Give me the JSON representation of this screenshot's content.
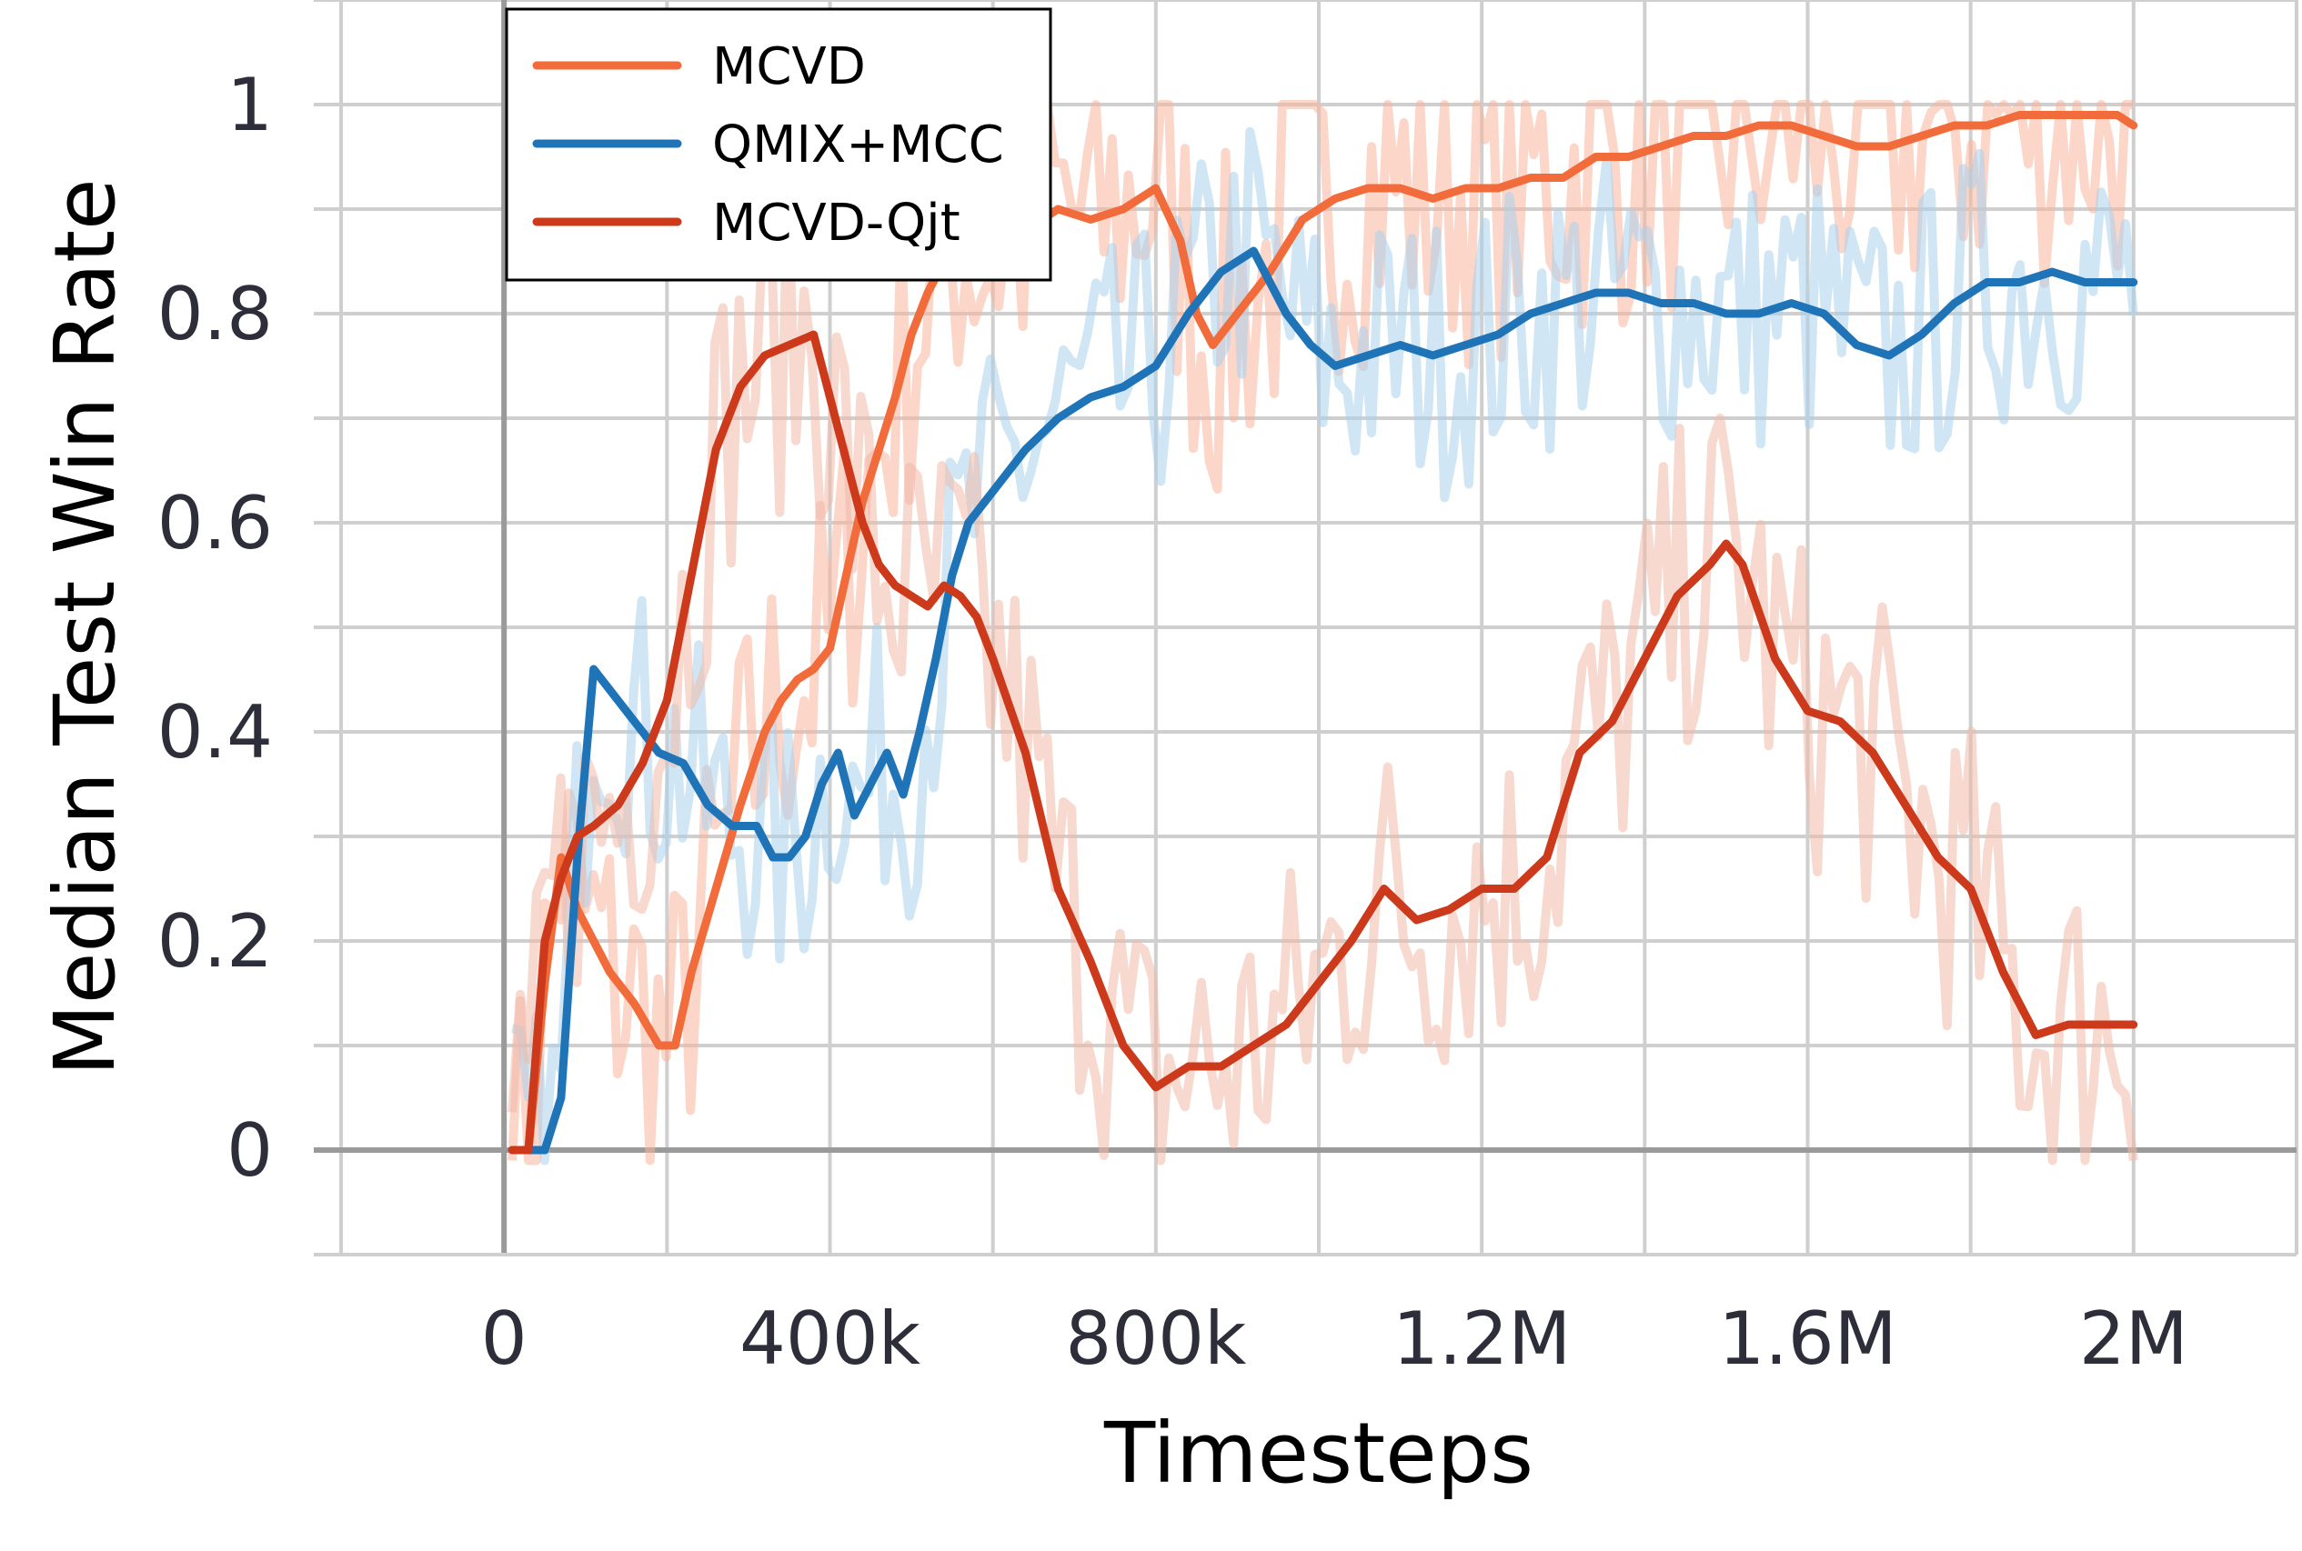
{
  "chart_data": {
    "type": "line",
    "xlabel": "Timesteps",
    "ylabel": "Median Test Win Rate",
    "xlim": [
      -200000,
      2200000
    ],
    "ylim": [
      -0.1,
      1.1
    ],
    "x_ticks": [
      0,
      400000,
      800000,
      1200000,
      1600000,
      2000000
    ],
    "x_tick_labels": [
      "0",
      "400k",
      "800k",
      "1.2M",
      "1.6M",
      "2M"
    ],
    "y_ticks": [
      0,
      0.2,
      0.4,
      0.6,
      0.8,
      1
    ],
    "y_tick_labels": [
      "0",
      "0.2",
      "0.4",
      "0.6",
      "0.8",
      "1"
    ],
    "grid": true,
    "legend_position": "top-left",
    "series": [
      {
        "name": "MCVD",
        "color": "#f26b3a",
        "x": [
          10000,
          30000,
          50000,
          70000,
          90000,
          110000,
          130000,
          160000,
          190000,
          210000,
          230000,
          260000,
          290000,
          320000,
          340000,
          360000,
          380000,
          400000,
          420000,
          440000,
          460000,
          480000,
          500000,
          520000,
          540000,
          560000,
          600000,
          640000,
          680000,
          720000,
          760000,
          800000,
          830000,
          850000,
          870000,
          900000,
          940000,
          980000,
          1020000,
          1060000,
          1100000,
          1140000,
          1180000,
          1220000,
          1260000,
          1300000,
          1340000,
          1380000,
          1420000,
          1460000,
          1500000,
          1540000,
          1580000,
          1620000,
          1660000,
          1700000,
          1740000,
          1780000,
          1820000,
          1860000,
          1900000,
          1940000,
          1980000,
          2000000
        ],
        "y": [
          0.0,
          0.0,
          0.16,
          0.28,
          0.23,
          0.2,
          0.17,
          0.14,
          0.1,
          0.1,
          0.17,
          0.25,
          0.33,
          0.4,
          0.43,
          0.45,
          0.46,
          0.48,
          0.55,
          0.62,
          0.67,
          0.72,
          0.78,
          0.82,
          0.85,
          0.87,
          0.86,
          0.88,
          0.9,
          0.89,
          0.9,
          0.92,
          0.87,
          0.8,
          0.77,
          0.8,
          0.84,
          0.89,
          0.91,
          0.92,
          0.92,
          0.91,
          0.92,
          0.92,
          0.93,
          0.93,
          0.95,
          0.95,
          0.96,
          0.97,
          0.97,
          0.98,
          0.98,
          0.97,
          0.96,
          0.96,
          0.97,
          0.98,
          0.98,
          0.99,
          0.99,
          0.99,
          0.99,
          0.98
        ]
      },
      {
        "name": "QMIX+MCC",
        "color": "#1f74b8",
        "x": [
          10000,
          30000,
          50000,
          70000,
          90000,
          110000,
          130000,
          160000,
          190000,
          220000,
          250000,
          280000,
          310000,
          330000,
          350000,
          370000,
          390000,
          410000,
          430000,
          450000,
          470000,
          490000,
          510000,
          530000,
          550000,
          570000,
          600000,
          640000,
          680000,
          720000,
          760000,
          800000,
          840000,
          880000,
          920000,
          960000,
          990000,
          1020000,
          1060000,
          1100000,
          1140000,
          1180000,
          1220000,
          1260000,
          1300000,
          1340000,
          1380000,
          1420000,
          1460000,
          1500000,
          1540000,
          1580000,
          1620000,
          1660000,
          1700000,
          1740000,
          1780000,
          1820000,
          1860000,
          1900000,
          1940000,
          1980000,
          2000000
        ],
        "y": [
          0.0,
          0.0,
          0.0,
          0.05,
          0.28,
          0.46,
          0.44,
          0.41,
          0.38,
          0.37,
          0.33,
          0.31,
          0.31,
          0.28,
          0.28,
          0.3,
          0.35,
          0.38,
          0.32,
          0.35,
          0.38,
          0.34,
          0.4,
          0.47,
          0.55,
          0.6,
          0.63,
          0.67,
          0.7,
          0.72,
          0.73,
          0.75,
          0.8,
          0.84,
          0.86,
          0.8,
          0.77,
          0.75,
          0.76,
          0.77,
          0.76,
          0.77,
          0.78,
          0.8,
          0.81,
          0.82,
          0.82,
          0.81,
          0.81,
          0.8,
          0.8,
          0.81,
          0.8,
          0.77,
          0.76,
          0.78,
          0.81,
          0.83,
          0.83,
          0.84,
          0.83,
          0.83,
          0.83
        ]
      },
      {
        "name": "MCVD-Qjt",
        "color": "#cc3a1b",
        "x": [
          10000,
          30000,
          50000,
          70000,
          90000,
          110000,
          140000,
          170000,
          200000,
          230000,
          260000,
          290000,
          320000,
          350000,
          380000,
          400000,
          420000,
          440000,
          460000,
          480000,
          500000,
          520000,
          540000,
          560000,
          580000,
          600000,
          640000,
          680000,
          720000,
          760000,
          800000,
          840000,
          880000,
          920000,
          960000,
          1000000,
          1040000,
          1080000,
          1120000,
          1160000,
          1200000,
          1240000,
          1280000,
          1320000,
          1360000,
          1400000,
          1440000,
          1480000,
          1500000,
          1520000,
          1560000,
          1600000,
          1640000,
          1680000,
          1720000,
          1760000,
          1800000,
          1840000,
          1880000,
          1920000,
          1960000,
          2000000
        ],
        "y": [
          0.0,
          0.0,
          0.2,
          0.26,
          0.3,
          0.31,
          0.33,
          0.37,
          0.43,
          0.55,
          0.67,
          0.73,
          0.76,
          0.77,
          0.78,
          0.72,
          0.66,
          0.6,
          0.56,
          0.54,
          0.53,
          0.52,
          0.54,
          0.53,
          0.51,
          0.47,
          0.38,
          0.25,
          0.18,
          0.1,
          0.06,
          0.08,
          0.08,
          0.1,
          0.12,
          0.16,
          0.2,
          0.25,
          0.22,
          0.23,
          0.25,
          0.25,
          0.28,
          0.38,
          0.41,
          0.47,
          0.53,
          0.56,
          0.58,
          0.56,
          0.47,
          0.42,
          0.41,
          0.38,
          0.33,
          0.28,
          0.25,
          0.17,
          0.11,
          0.12,
          0.12,
          0.12
        ]
      }
    ]
  }
}
